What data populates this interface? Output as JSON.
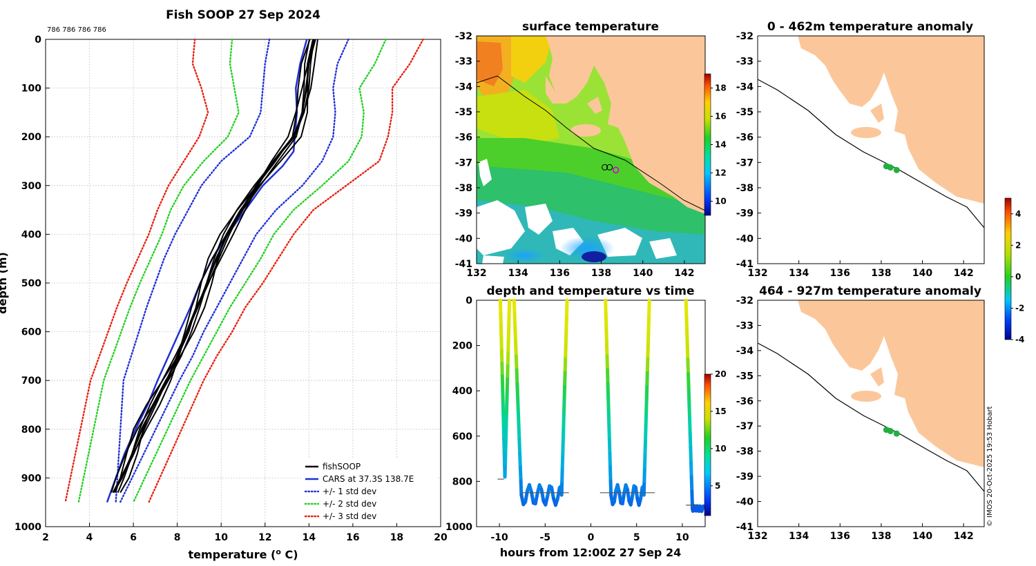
{
  "colors": {
    "land": "#fbc79a",
    "fishsoop": "#000000",
    "cars": "#1f2fd6",
    "std1": "#1f2fd6",
    "std2": "#22d022",
    "std3": "#e82010"
  },
  "chart_data": [
    {
      "id": "profile",
      "type": "line",
      "title": "Fish SOOP 27 Sep 2024",
      "annotation": "786 786 786 786",
      "xlabel": "temperature (",
      "xlabel_sup": "o",
      "xlabel_end": " C)",
      "ylabel": "depth (m)",
      "xlim": [
        2,
        20
      ],
      "ylim": [
        1000,
        0
      ],
      "xticks": [
        2,
        4,
        6,
        8,
        10,
        12,
        14,
        16,
        18,
        20
      ],
      "yticks": [
        0,
        100,
        200,
        300,
        400,
        500,
        600,
        700,
        800,
        900,
        1000
      ],
      "cars_depth": [
        0,
        50,
        100,
        150,
        200,
        230,
        260,
        300,
        350,
        400,
        450,
        500,
        550,
        600,
        650,
        700,
        750,
        800,
        850,
        900,
        950
      ],
      "cars_temp": [
        13.9,
        13.6,
        13.4,
        13.45,
        13.35,
        13.3,
        12.8,
        11.9,
        11.1,
        10.3,
        9.6,
        9.05,
        8.6,
        8.1,
        7.6,
        7.1,
        6.65,
        6.1,
        5.6,
        5.2,
        4.8
      ],
      "fish_depth": [
        0,
        50,
        100,
        150,
        200,
        250,
        300,
        350,
        400,
        450,
        500,
        550,
        600,
        650,
        700,
        750,
        800,
        850,
        900,
        930
      ],
      "fish_temp": [
        14.2,
        14.0,
        13.9,
        13.7,
        13.3,
        12.4,
        11.6,
        10.9,
        10.3,
        9.8,
        9.35,
        8.9,
        8.45,
        8.0,
        7.5,
        6.95,
        6.4,
        5.95,
        5.45,
        5.1
      ],
      "fish_offsets": [
        -0.4,
        -0.2,
        0.0,
        0.2,
        0.35,
        -0.3,
        0.1,
        0.25
      ],
      "std_temp": {
        "std1_low": [
          12.2,
          12.0,
          11.9,
          11.8,
          11.3,
          10.0,
          9.1,
          8.5,
          7.9,
          7.4,
          7.0,
          6.6,
          6.25,
          5.9,
          5.55,
          5.2
        ],
        "std1_high": [
          15.8,
          15.3,
          15.1,
          15.2,
          15.1,
          14.6,
          13.7,
          12.5,
          11.6,
          11.0,
          10.4,
          9.8,
          9.2,
          8.7,
          8.1,
          5.4
        ],
        "std2_low": [
          10.5,
          10.4,
          10.6,
          10.8,
          10.3,
          9.2,
          8.3,
          7.7,
          7.3,
          6.8,
          6.3,
          5.85,
          5.45,
          5.05,
          4.65,
          3.5
        ],
        "std2_high": [
          17.5,
          17.0,
          16.3,
          16.5,
          16.4,
          15.8,
          14.6,
          13.3,
          12.4,
          11.8,
          11.1,
          10.4,
          9.8,
          9.2,
          8.6,
          6.0
        ],
        "std3_low": [
          8.8,
          8.7,
          9.1,
          9.4,
          9.0,
          8.3,
          7.6,
          7.1,
          6.7,
          6.2,
          5.7,
          5.25,
          4.85,
          4.45,
          4.05,
          2.9
        ],
        "std3_high": [
          19.2,
          18.6,
          17.8,
          17.8,
          17.6,
          17.2,
          15.7,
          14.2,
          13.3,
          12.6,
          11.9,
          11.1,
          10.5,
          9.8,
          9.2,
          6.7
        ],
        "depths": [
          0,
          50,
          100,
          150,
          200,
          250,
          300,
          350,
          400,
          450,
          500,
          550,
          600,
          650,
          700,
          950
        ]
      },
      "legend": [
        {
          "label": "fishSOOP",
          "style": "solid",
          "color": "#000000"
        },
        {
          "label": "CARS at 37.3S 138.7E",
          "style": "solid",
          "color": "#1f2fd6"
        },
        {
          "label": "+/- 1 std dev",
          "style": "dotted",
          "color": "#1f2fd6"
        },
        {
          "label": "+/- 2 std dev",
          "style": "dotted",
          "color": "#22d022"
        },
        {
          "label": "+/- 3 std dev",
          "style": "dotted",
          "color": "#e82010"
        }
      ]
    },
    {
      "id": "surface",
      "type": "heatmap",
      "title": "surface temperature",
      "xlim": [
        132,
        143
      ],
      "ylim": [
        -41,
        -32
      ],
      "xticks": [
        132,
        134,
        136,
        138,
        140,
        142
      ],
      "yticks": [
        -32,
        -33,
        -34,
        -35,
        -36,
        -37,
        -38,
        -39,
        -40,
        -41
      ],
      "colorbar_range": [
        9,
        19
      ],
      "colorbar_ticks": [
        10,
        12,
        14,
        16,
        18
      ],
      "track_point": {
        "lon": 138.7,
        "lat": -37.3
      }
    },
    {
      "id": "timeseries",
      "type": "scatter",
      "title": "depth and temperature vs time",
      "xlabel": "hours from 12:00Z 27 Sep 24",
      "xlim": [
        -12.5,
        12.5
      ],
      "ylim": [
        1000,
        0
      ],
      "xticks": [
        -10,
        -5,
        0,
        5,
        10
      ],
      "yticks": [
        0,
        200,
        400,
        600,
        800,
        1000
      ],
      "colorbar_range": [
        1,
        20
      ],
      "colorbar_ticks": [
        5,
        10,
        15,
        20
      ]
    },
    {
      "id": "anom_shallow",
      "type": "heatmap",
      "title": "0 - 462m temperature anomaly",
      "xlim": [
        132,
        143
      ],
      "ylim": [
        -41,
        -32
      ],
      "xticks": [
        132,
        134,
        136,
        138,
        140,
        142
      ],
      "yticks": [
        -32,
        -33,
        -34,
        -35,
        -36,
        -37,
        -38,
        -39,
        -40,
        -41
      ]
    },
    {
      "id": "anom_deep",
      "type": "heatmap",
      "title": "464 - 927m temperature anomaly",
      "xlim": [
        132,
        143
      ],
      "ylim": [
        -41,
        -32
      ],
      "xticks": [
        132,
        134,
        136,
        138,
        140,
        142
      ],
      "yticks": [
        -32,
        -33,
        -34,
        -35,
        -36,
        -37,
        -38,
        -39,
        -40,
        -41
      ],
      "colorbar_range": [
        -4,
        5
      ],
      "colorbar_ticks": [
        -4,
        -2,
        0,
        2,
        4
      ]
    }
  ],
  "footer": "© IMOS 20-Oct-2025 19:53 Hobart"
}
